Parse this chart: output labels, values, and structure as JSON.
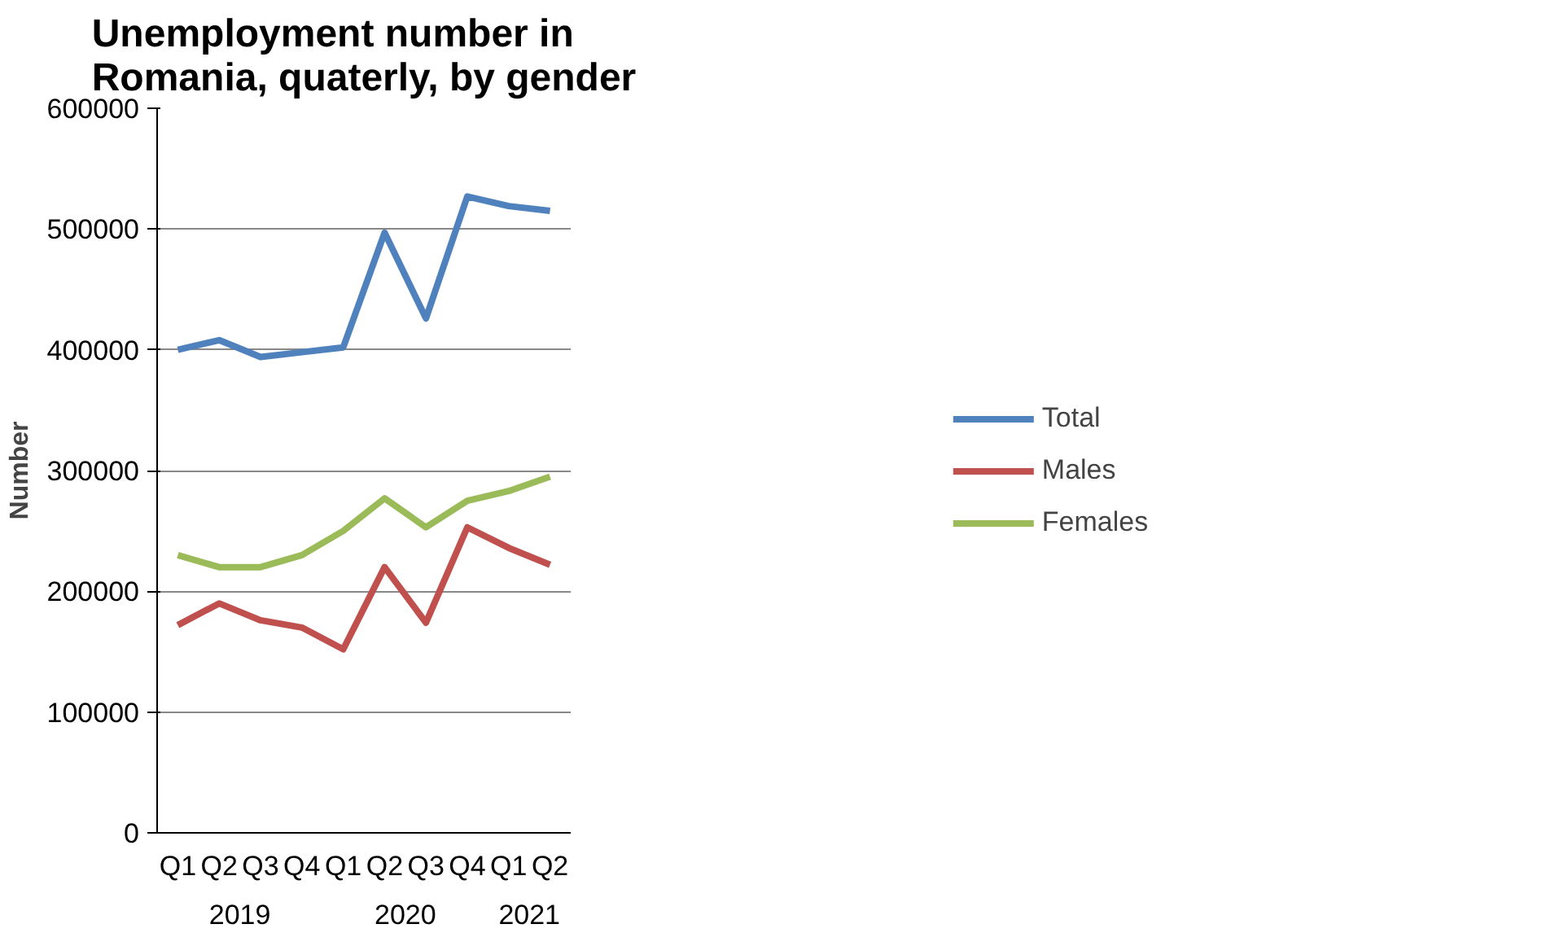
{
  "chart_data": {
    "type": "line",
    "title": "Unemployment number in Romania, quaterly, by gender",
    "ylabel": "Number",
    "categories": [
      "Q1",
      "Q2",
      "Q3",
      "Q4",
      "Q1",
      "Q2",
      "Q3",
      "Q4",
      "Q1",
      "Q2"
    ],
    "annotations": [
      "2019",
      "2020",
      "2021"
    ],
    "ylim": [
      0,
      600000
    ],
    "yticks": [
      0,
      100000,
      200000,
      300000,
      400000,
      500000,
      600000
    ],
    "grid": "y",
    "legend": "right",
    "marker": "none",
    "line_style": "solid",
    "series": [
      {
        "name": "Total",
        "color": "#4f81bd",
        "values": [
          400000,
          408000,
          394000,
          398000,
          402000,
          497000,
          426000,
          527000,
          519000,
          515000
        ]
      },
      {
        "name": "Males",
        "color": "#c0504d",
        "values": [
          172000,
          190000,
          176000,
          170000,
          152000,
          220000,
          174000,
          253000,
          236000,
          222000
        ]
      },
      {
        "name": "Females",
        "color": "#9bbb59",
        "values": [
          230000,
          220000,
          220000,
          230000,
          250000,
          277000,
          253000,
          275000,
          283000,
          295000
        ]
      }
    ]
  }
}
